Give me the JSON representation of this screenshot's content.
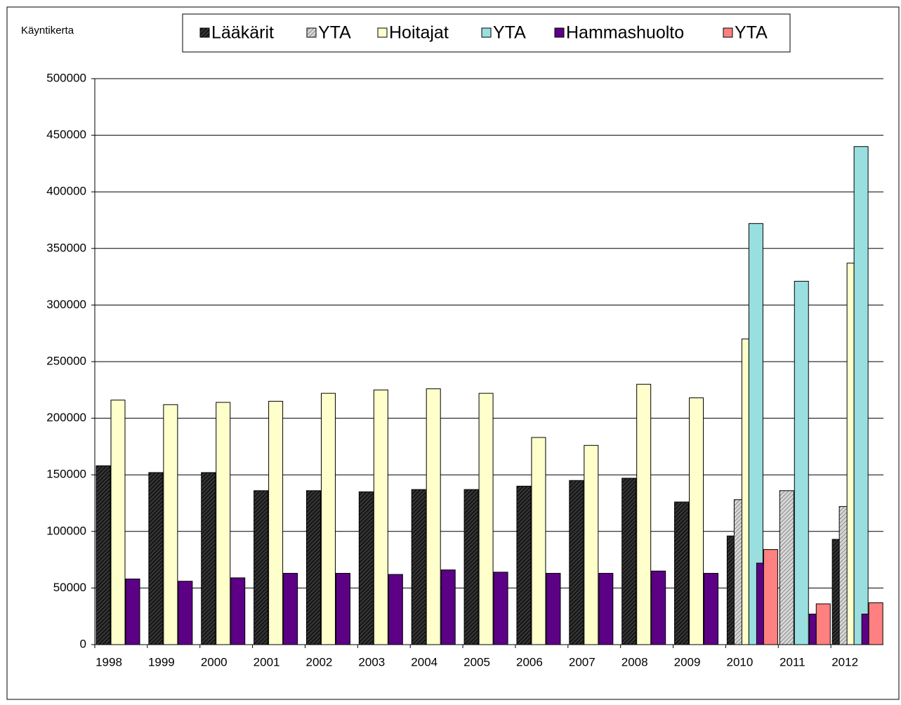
{
  "chart_data": {
    "type": "bar",
    "y_label": "Käyntikerta",
    "categories": [
      "1998",
      "1999",
      "2000",
      "2001",
      "2002",
      "2003",
      "2004",
      "2005",
      "2006",
      "2007",
      "2008",
      "2009",
      "2010",
      "2011",
      "2012"
    ],
    "series": [
      {
        "name": "Lääkärit",
        "color": "#333333",
        "hatch": true,
        "values": [
          158000,
          152000,
          152000,
          136000,
          136000,
          135000,
          137000,
          137000,
          140000,
          145000,
          147000,
          126000,
          96000,
          null,
          93000
        ]
      },
      {
        "name": "YTA",
        "color": "#d8d8d8",
        "hatch": true,
        "values": [
          null,
          null,
          null,
          null,
          null,
          null,
          null,
          null,
          null,
          null,
          null,
          null,
          128000,
          136000,
          122000
        ]
      },
      {
        "name": "Hoitajat",
        "color": "#ffffcc",
        "values": [
          216000,
          212000,
          214000,
          215000,
          222000,
          225000,
          226000,
          222000,
          183000,
          176000,
          230000,
          218000,
          270000,
          null,
          337000
        ]
      },
      {
        "name": "YTA",
        "color": "#99dfe0",
        "values": [
          null,
          null,
          null,
          null,
          null,
          null,
          null,
          null,
          null,
          null,
          null,
          null,
          372000,
          321000,
          440000
        ]
      },
      {
        "name": "Hammashuolto",
        "color": "#5c0085",
        "values": [
          58000,
          56000,
          59000,
          63000,
          63000,
          62000,
          66000,
          64000,
          63000,
          63000,
          65000,
          63000,
          72000,
          27000,
          27000
        ]
      },
      {
        "name": "YTA",
        "color": "#ff8080",
        "values": [
          null,
          null,
          null,
          null,
          null,
          null,
          null,
          null,
          null,
          null,
          null,
          null,
          84000,
          36000,
          37000
        ]
      }
    ],
    "ylim": [
      0,
      500000
    ],
    "yticks": [
      0,
      50000,
      100000,
      150000,
      200000,
      250000,
      300000,
      350000,
      400000,
      450000,
      500000
    ],
    "grid": true
  }
}
